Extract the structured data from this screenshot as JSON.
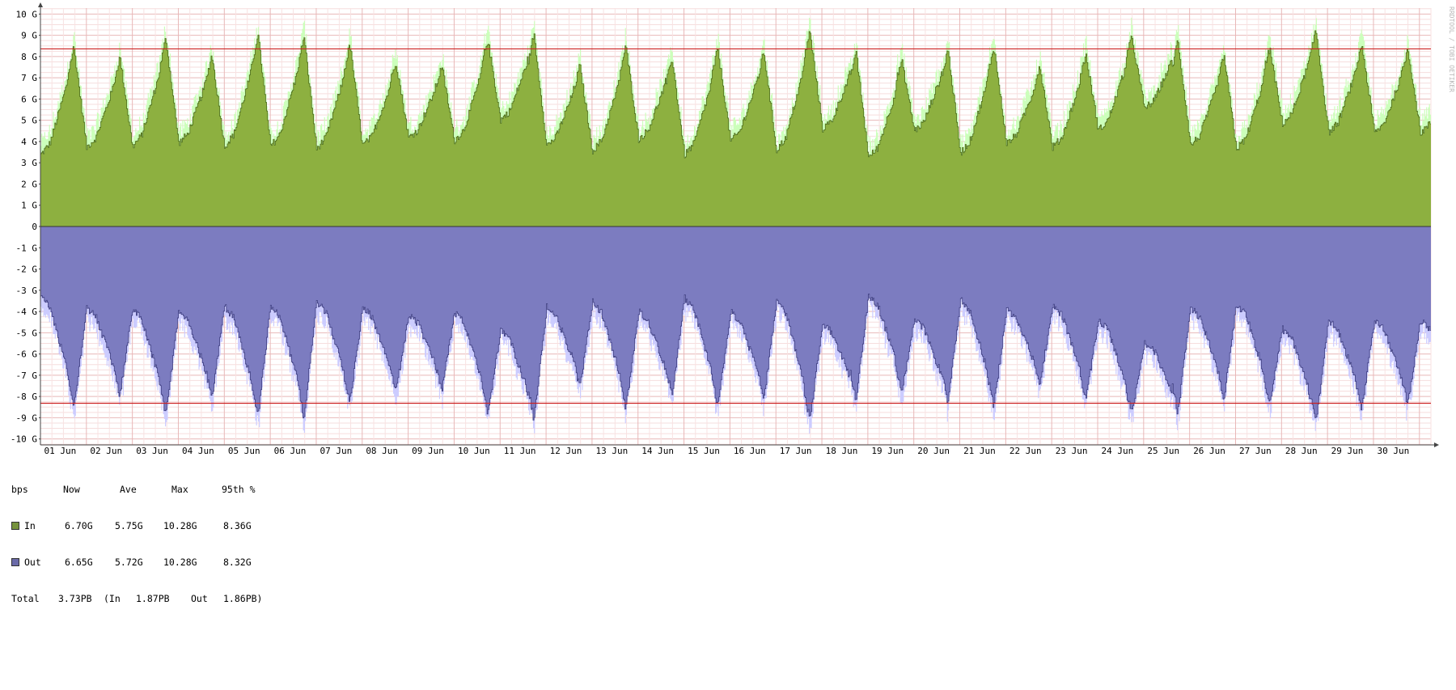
{
  "chart_data": {
    "type": "area",
    "unit_label": "bps",
    "watermark": "RRDTOOL / TOBI OETIKER",
    "y_ticks": [
      "10 G",
      "9 G",
      "8 G",
      "7 G",
      "6 G",
      "5 G",
      "4 G",
      "3 G",
      "2 G",
      "1 G",
      "0",
      "-1 G",
      "-2 G",
      "-3 G",
      "-4 G",
      "-5 G",
      "-6 G",
      "-7 G",
      "-8 G",
      "-9 G",
      "-10 G"
    ],
    "ylim": [
      -10.28,
      10.28
    ],
    "x_labels": [
      "01 Jun",
      "02 Jun",
      "03 Jun",
      "04 Jun",
      "05 Jun",
      "06 Jun",
      "07 Jun",
      "08 Jun",
      "09 Jun",
      "10 Jun",
      "11 Jun",
      "12 Jun",
      "13 Jun",
      "14 Jun",
      "15 Jun",
      "16 Jun",
      "17 Jun",
      "18 Jun",
      "19 Jun",
      "20 Jun",
      "21 Jun",
      "22 Jun",
      "23 Jun",
      "24 Jun",
      "25 Jun",
      "26 Jun",
      "27 Jun",
      "28 Jun",
      "29 Jun",
      "30 Jun"
    ],
    "percentile_95": {
      "in": 8.36,
      "out": -8.32
    },
    "series": [
      {
        "name": "In",
        "color": "#8db040",
        "max_color": "#ccffbb",
        "line_color": "#4e6e1e",
        "daily_peak": [
          8.5,
          8.0,
          8.9,
          8.1,
          9.1,
          9.0,
          8.6,
          7.8,
          7.6,
          8.8,
          9.1,
          7.6,
          8.5,
          8.0,
          8.4,
          8.3,
          9.2,
          8.3,
          7.8,
          8.4,
          8.5,
          7.6,
          8.1,
          8.9,
          8.8,
          8.1,
          8.4,
          9.3,
          8.6,
          8.4
        ],
        "daily_trough": [
          3.1,
          3.5,
          3.5,
          3.7,
          3.5,
          3.5,
          3.4,
          3.6,
          4.0,
          3.8,
          4.8,
          3.6,
          3.3,
          3.9,
          3.1,
          3.8,
          3.3,
          4.4,
          3.0,
          4.3,
          3.2,
          3.7,
          3.5,
          4.3,
          5.4,
          3.6,
          3.4,
          4.6,
          4.2,
          4.2
        ]
      },
      {
        "name": "Out",
        "color": "#7c7cc0",
        "max_color": "#ccccff",
        "line_color": "#3e3e80",
        "daily_peak": [
          -8.5,
          -8.0,
          -8.9,
          -8.1,
          -9.0,
          -9.0,
          -8.3,
          -7.8,
          -7.7,
          -8.8,
          -9.1,
          -7.6,
          -8.6,
          -8.0,
          -8.5,
          -8.2,
          -9.1,
          -8.2,
          -7.8,
          -8.3,
          -8.5,
          -7.5,
          -8.1,
          -8.8,
          -8.8,
          -8.1,
          -8.4,
          -9.3,
          -8.6,
          -8.4
        ],
        "daily_trough": [
          -3.0,
          -3.6,
          -3.6,
          -3.8,
          -3.5,
          -3.4,
          -3.3,
          -3.6,
          -4.0,
          -3.8,
          -4.7,
          -3.6,
          -3.3,
          -3.8,
          -3.1,
          -3.8,
          -3.2,
          -4.4,
          -3.0,
          -4.2,
          -3.2,
          -3.7,
          -3.5,
          -4.2,
          -5.3,
          -3.6,
          -3.4,
          -4.6,
          -4.2,
          -4.2
        ]
      }
    ],
    "legend": {
      "headers": {
        "unit": "bps",
        "now": "Now",
        "ave": "Ave",
        "max": "Max",
        "p95": "95th %"
      },
      "rows": [
        {
          "name": "In",
          "color": "#76923c",
          "now": "6.70G",
          "ave": "5.75G",
          "max": "10.28G",
          "p95": "8.36G"
        },
        {
          "name": "Out",
          "color": "#6a6aa8",
          "now": "6.65G",
          "ave": "5.72G",
          "max": "10.28G",
          "p95": "8.32G"
        }
      ],
      "total": {
        "label": "Total",
        "value": "3.73PB",
        "in_text": "(In",
        "in_value": "1.87PB",
        "out_text": "Out",
        "out_value": "1.86PB)"
      }
    }
  }
}
